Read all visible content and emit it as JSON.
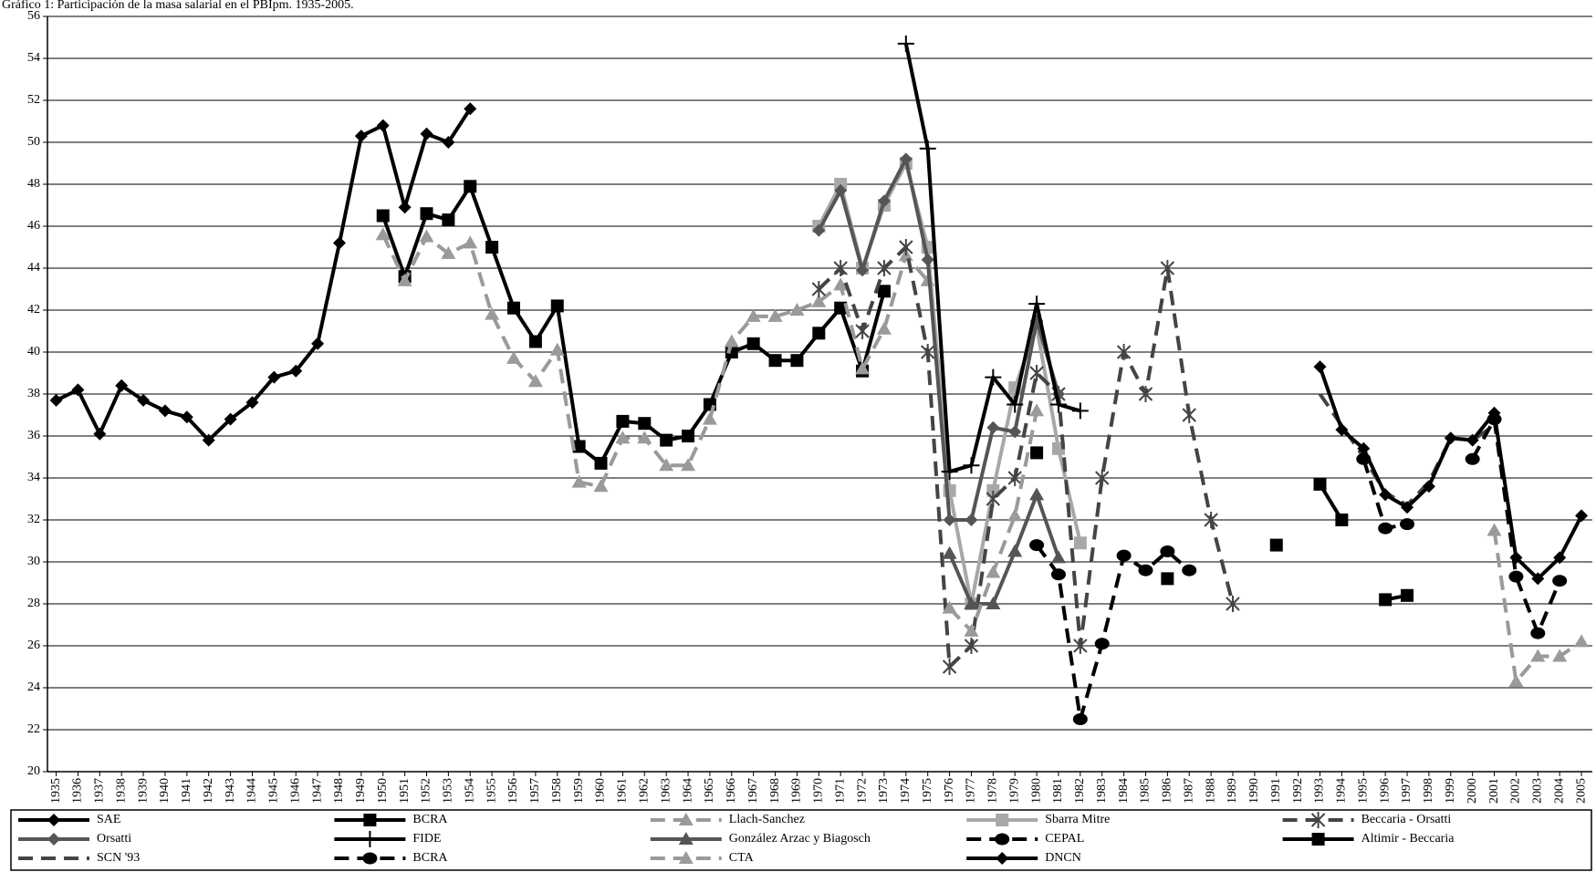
{
  "chart_data": {
    "type": "line",
    "title": "Gráfico 1: Participación de la masa salarial en el PBIpm. 1935-2005.",
    "xlim": [
      1934.6,
      2005.5
    ],
    "xticks": [
      1935,
      1936,
      1937,
      1938,
      1939,
      1940,
      1941,
      1942,
      1943,
      1944,
      1945,
      1946,
      1947,
      1948,
      1949,
      1950,
      1951,
      1952,
      1953,
      1954,
      1955,
      1956,
      1957,
      1958,
      1959,
      1960,
      1961,
      1962,
      1963,
      1964,
      1965,
      1966,
      1967,
      1968,
      1969,
      1970,
      1971,
      1972,
      1973,
      1974,
      1975,
      1976,
      1977,
      1978,
      1979,
      1980,
      1981,
      1982,
      1983,
      1984,
      1985,
      1986,
      1987,
      1988,
      1989,
      1990,
      1991,
      1992,
      1993,
      1994,
      1995,
      1996,
      1997,
      1998,
      1999,
      2000,
      2001,
      2002,
      2003,
      2004,
      2005
    ],
    "ylim": [
      20,
      56
    ],
    "yticks": [
      20,
      22,
      24,
      26,
      28,
      30,
      32,
      34,
      36,
      38,
      40,
      42,
      44,
      46,
      48,
      50,
      52,
      54,
      56
    ],
    "grid": true,
    "legend": "bottom",
    "series": [
      {
        "name": "SAE",
        "color": "#000000",
        "dashed": false,
        "marker": "diamond",
        "x": [
          1935,
          1936,
          1937,
          1938,
          1939,
          1940,
          1941,
          1942,
          1943,
          1944,
          1945,
          1946,
          1947,
          1948,
          1949,
          1950,
          1951,
          1952,
          1953,
          1954
        ],
        "values": [
          37.7,
          38.2,
          36.1,
          38.4,
          37.7,
          37.2,
          36.9,
          35.8,
          36.8,
          37.6,
          38.8,
          39.1,
          40.4,
          45.2,
          50.3,
          50.8,
          46.9,
          50.4,
          50.0,
          51.6
        ]
      },
      {
        "name": "BCRA",
        "color": "#000000",
        "dashed": false,
        "marker": "square",
        "x": [
          1950,
          1951,
          1952,
          1953,
          1954,
          1955,
          1956,
          1957,
          1958,
          1959,
          1960,
          1961,
          1962,
          1963,
          1964,
          1965,
          1966,
          1967,
          1968,
          1969,
          1970,
          1971,
          1972,
          1973
        ],
        "values": [
          46.5,
          43.6,
          46.6,
          46.3,
          47.9,
          45.0,
          42.1,
          40.5,
          42.2,
          35.5,
          34.7,
          36.7,
          36.6,
          35.8,
          36.0,
          37.5,
          40.0,
          40.4,
          39.6,
          39.6,
          40.9,
          42.1,
          39.1,
          42.9
        ]
      },
      {
        "name": "Llach-Sanchez",
        "color": "#9a9a9a",
        "dashed": true,
        "marker": "triangle",
        "x": [
          1950,
          1951,
          1952,
          1953,
          1954,
          1955,
          1956,
          1957,
          1958,
          1959,
          1960,
          1961,
          1962,
          1963,
          1964,
          1965,
          1966,
          1967,
          1968,
          1969,
          1970,
          1971,
          1972,
          1973,
          1974,
          1975
        ],
        "values": [
          45.6,
          43.4,
          45.5,
          44.7,
          45.2,
          41.8,
          39.7,
          38.6,
          40.1,
          33.8,
          33.6,
          35.9,
          35.9,
          34.6,
          34.6,
          36.8,
          40.5,
          41.7,
          41.7,
          42.0,
          42.4,
          43.2,
          39.2,
          41.1,
          44.6,
          43.4
        ]
      },
      {
        "name": "Sbarra Mitre",
        "color": "#a8a8a8",
        "dashed": false,
        "marker": "square",
        "x": [
          1970,
          1971,
          1972,
          1973,
          1974,
          1975,
          1976,
          1977,
          1978,
          1979,
          1980,
          1981,
          1982
        ],
        "values": [
          46.0,
          48.0,
          44.0,
          47.0,
          49.0,
          45.0,
          33.4,
          28.0,
          33.4,
          38.3,
          41.2,
          35.4,
          30.9
        ]
      },
      {
        "name": "Beccaria - Orsatti",
        "color": "#444444",
        "dashed": true,
        "marker": "star",
        "x": [
          1970,
          1971,
          1972,
          1973,
          1974,
          1975,
          1976,
          1977,
          1978,
          1979,
          1980,
          1981,
          1982,
          1983,
          1984,
          1985,
          1986,
          1987,
          1988,
          1989
        ],
        "values": [
          43.0,
          44.0,
          41.0,
          44.0,
          45.0,
          40.0,
          25.0,
          26.0,
          33.0,
          34.0,
          39.0,
          38.0,
          26.0,
          34.0,
          40.0,
          38.0,
          44.0,
          37.0,
          32.0,
          28.0
        ]
      },
      {
        "name": "Orsatti",
        "color": "#555555",
        "dashed": false,
        "marker": "diamond",
        "x": [
          1970,
          1971,
          1972,
          1973,
          1974,
          1975,
          1976,
          1977,
          1978,
          1979,
          1980,
          1981
        ],
        "values": [
          45.8,
          47.7,
          43.9,
          47.2,
          49.2,
          44.4,
          32.0,
          32.0,
          36.4,
          36.2,
          41.5,
          38.0
        ]
      },
      {
        "name": "FIDE",
        "color": "#000000",
        "dashed": false,
        "marker": "plus",
        "x": [
          1974,
          1975,
          1976,
          1977,
          1978,
          1979,
          1980,
          1981,
          1982
        ],
        "values": [
          54.7,
          49.7,
          34.3,
          34.6,
          38.8,
          37.5,
          42.3,
          37.5,
          37.2
        ]
      },
      {
        "name": "González Arzac y Biagosch",
        "color": "#555555",
        "dashed": false,
        "marker": "triangle",
        "x": [
          1976,
          1977,
          1978,
          1979,
          1980,
          1981
        ],
        "values": [
          30.4,
          28.0,
          28.0,
          30.5,
          33.2,
          30.2
        ]
      },
      {
        "name": "CEPAL",
        "color": "#000000",
        "dashed": true,
        "marker": "circle",
        "x": [
          1980,
          1981,
          1982,
          1983,
          1984,
          1985,
          1986,
          1987
        ],
        "values": [
          30.8,
          29.4,
          22.5,
          26.1,
          30.3,
          29.6,
          30.5,
          29.6
        ]
      },
      {
        "name": "Altimir - Beccaria",
        "color": "#000000",
        "dashed": false,
        "marker": "square",
        "x": [
          1980,
          1985,
          1986,
          1990,
          1991,
          1992,
          1993,
          1994,
          1995,
          1996,
          1997
        ],
        "values": [
          35.2,
          null,
          29.2,
          null,
          30.8,
          null,
          33.7,
          32.0,
          null,
          28.2,
          28.4
        ]
      },
      {
        "name": "SCN '93",
        "color": "#444444",
        "dashed": true,
        "marker": "none",
        "x": [
          1993,
          1994,
          1995,
          1996,
          1997,
          1998,
          1999,
          2000,
          2001
        ],
        "values": [
          38.0,
          36.5,
          35.0,
          33.3,
          32.7,
          33.8,
          35.9,
          35.8,
          36.5
        ]
      },
      {
        "name": "BCRA",
        "color": "#000000",
        "dashed": true,
        "marker": "circle",
        "x": [
          1995,
          1996,
          1997,
          1998,
          2000,
          2001,
          2002,
          2003,
          2004
        ],
        "values": [
          34.9,
          31.6,
          31.8,
          null,
          34.9,
          36.8,
          29.3,
          26.6,
          29.1
        ]
      },
      {
        "name": "CTA",
        "color": "#9a9a9a",
        "dashed": true,
        "marker": "triangle",
        "x": [
          1976,
          1977,
          1978,
          1979,
          1980,
          1981,
          2001,
          2002,
          2003,
          2004,
          2005
        ],
        "values": [
          27.8,
          26.7,
          29.5,
          32.2,
          37.2,
          null,
          31.5,
          24.3,
          25.5,
          25.5,
          26.2
        ]
      },
      {
        "name": "DNCN",
        "color": "#000000",
        "dashed": false,
        "marker": "diamond",
        "x": [
          1993,
          1994,
          1995,
          1996,
          1997,
          1998,
          1999,
          2000,
          2001,
          2002,
          2003,
          2004,
          2005
        ],
        "values": [
          39.3,
          36.3,
          35.4,
          33.2,
          32.6,
          33.6,
          35.9,
          35.8,
          37.1,
          30.2,
          29.2,
          30.2,
          32.2
        ]
      }
    ]
  }
}
